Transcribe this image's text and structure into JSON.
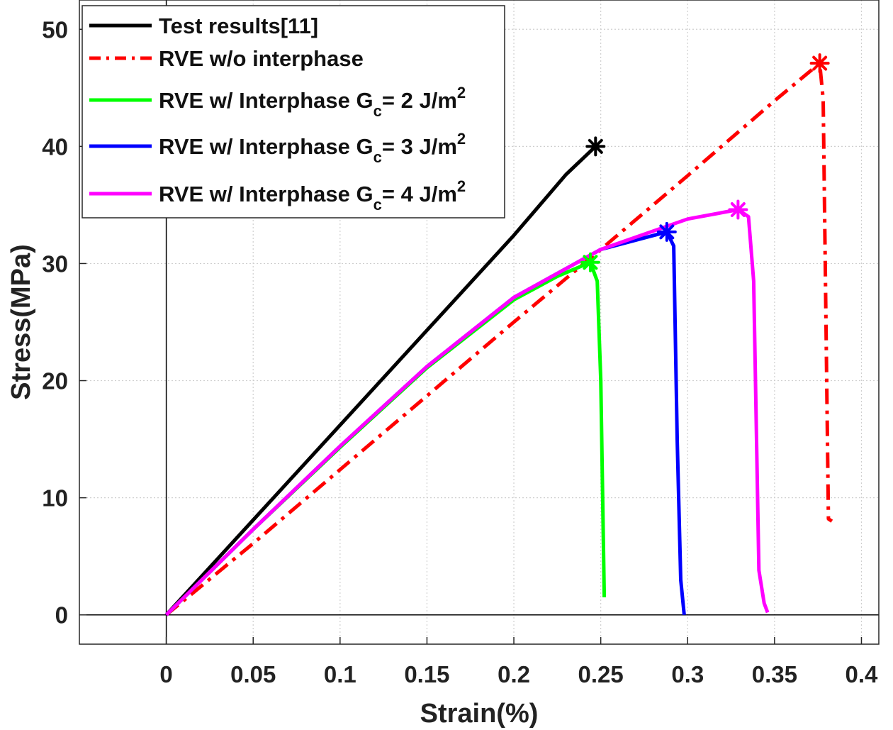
{
  "chart_data": {
    "type": "line",
    "xlabel": "Strain(%)",
    "ylabel": "Stress(MPa)",
    "xlim": [
      -0.05,
      0.41
    ],
    "ylim": [
      -2.5,
      52.5
    ],
    "xticks": [
      0,
      0.05,
      0.1,
      0.15,
      0.2,
      0.25,
      0.3,
      0.35,
      0.4
    ],
    "xtick_labels": [
      "0",
      "0.05",
      "0.1",
      "0.15",
      "0.2",
      "0.25",
      "0.3",
      "0.35",
      "0.4"
    ],
    "yticks": [
      0,
      10,
      20,
      30,
      40,
      50
    ],
    "ytick_labels": [
      "0",
      "10",
      "20",
      "30",
      "40",
      "50"
    ],
    "grid": true,
    "legend_position": "top-left",
    "series": [
      {
        "name": "Test results[11]",
        "legend": {
          "prefix": "Test results[11]",
          "sub": "",
          "suffix": "",
          "sup": ""
        },
        "color": "#000000",
        "dash": "solid",
        "x": [
          0,
          0.05,
          0.1,
          0.15,
          0.2,
          0.23,
          0.247
        ],
        "y": [
          0,
          8.1,
          16.2,
          24.3,
          32.4,
          37.6,
          40.0
        ],
        "marker": {
          "x": 0.247,
          "y": 40.0
        }
      },
      {
        "name": "RVE w/o interphase",
        "legend": {
          "prefix": "RVE w/o interphase",
          "sub": "",
          "suffix": "",
          "sup": ""
        },
        "color": "#ff0000",
        "dash": "dashdot",
        "x": [
          0,
          0.05,
          0.1,
          0.15,
          0.2,
          0.25,
          0.3,
          0.35,
          0.376,
          0.378,
          0.381,
          0.383
        ],
        "y": [
          0,
          6.1,
          12.4,
          18.7,
          25.0,
          31.2,
          37.5,
          43.9,
          47.1,
          44.0,
          8.2,
          8.0
        ],
        "marker": {
          "x": 0.376,
          "y": 47.1
        }
      },
      {
        "name": "RVE w/ Interphase Gc= 2 J/m2",
        "legend": {
          "prefix": "RVE w/ Interphase G",
          "sub": "c",
          "suffix": "= 2 J/m",
          "sup": "2"
        },
        "color": "#00ff00",
        "dash": "solid",
        "x": [
          0,
          0.05,
          0.1,
          0.15,
          0.2,
          0.225,
          0.244,
          0.248,
          0.25,
          0.252
        ],
        "y": [
          0,
          7.3,
          14.3,
          21.1,
          26.9,
          28.9,
          30.1,
          28.5,
          20.0,
          1.5
        ],
        "marker": {
          "x": 0.244,
          "y": 30.1
        }
      },
      {
        "name": "RVE w/ Interphase Gc= 3 J/m2",
        "legend": {
          "prefix": "RVE w/ Interphase G",
          "sub": "c",
          "suffix": "= 3 J/m",
          "sup": "2"
        },
        "color": "#0000ff",
        "dash": "solid",
        "x": [
          0,
          0.05,
          0.1,
          0.15,
          0.2,
          0.25,
          0.288,
          0.292,
          0.294,
          0.296,
          0.298
        ],
        "y": [
          0,
          7.3,
          14.4,
          21.2,
          27.1,
          31.2,
          32.7,
          31.5,
          15.0,
          3.0,
          0
        ],
        "marker": {
          "x": 0.288,
          "y": 32.7
        }
      },
      {
        "name": "RVE w/ Interphase Gc= 4 J/m2",
        "legend": {
          "prefix": "RVE w/ Interphase G",
          "sub": "c",
          "suffix": "= 4 J/m",
          "sup": "2"
        },
        "color": "#ff00ff",
        "dash": "solid",
        "x": [
          0,
          0.05,
          0.1,
          0.15,
          0.2,
          0.25,
          0.3,
          0.329,
          0.335,
          0.338,
          0.341,
          0.344,
          0.346
        ],
        "y": [
          0,
          7.3,
          14.4,
          21.2,
          27.1,
          31.2,
          33.8,
          34.6,
          34.0,
          28.5,
          3.8,
          1.0,
          0.2
        ],
        "marker": {
          "x": 0.329,
          "y": 34.6
        }
      }
    ]
  }
}
